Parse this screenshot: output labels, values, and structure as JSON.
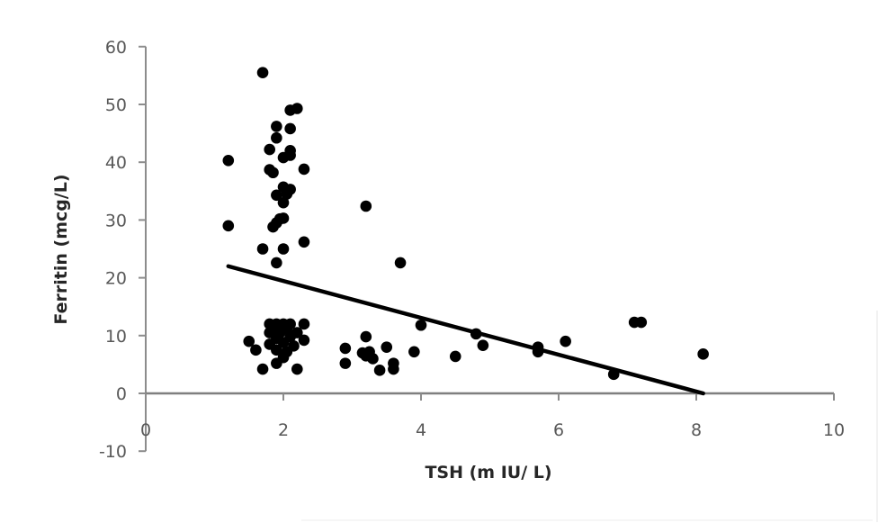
{
  "chart_data": {
    "type": "scatter",
    "title": "",
    "xlabel": "TSH (m IU/ L)",
    "ylabel": "Ferritin (mcg/L)",
    "xlim": [
      0,
      10
    ],
    "ylim": [
      -10,
      60
    ],
    "x_ticks": [
      0,
      2,
      4,
      6,
      8,
      10
    ],
    "y_ticks": [
      60,
      50,
      40,
      30,
      20,
      10,
      0,
      -10
    ],
    "grid": false,
    "legend": null,
    "marker_color": "#000000",
    "axis_color": "#8c8c8c",
    "trendline": {
      "type": "linear",
      "x": [
        1.2,
        8.1
      ],
      "y": [
        22.0,
        0.0
      ],
      "color": "#000000"
    },
    "points": [
      {
        "x": 1.2,
        "y": 40.3
      },
      {
        "x": 1.2,
        "y": 29.0
      },
      {
        "x": 1.7,
        "y": 55.5
      },
      {
        "x": 1.7,
        "y": 25.0
      },
      {
        "x": 1.8,
        "y": 42.2
      },
      {
        "x": 1.8,
        "y": 38.7
      },
      {
        "x": 1.85,
        "y": 38.2
      },
      {
        "x": 1.85,
        "y": 28.8
      },
      {
        "x": 1.9,
        "y": 46.2
      },
      {
        "x": 1.9,
        "y": 44.2
      },
      {
        "x": 1.9,
        "y": 34.3
      },
      {
        "x": 1.9,
        "y": 29.5
      },
      {
        "x": 1.9,
        "y": 22.6
      },
      {
        "x": 1.95,
        "y": 30.2
      },
      {
        "x": 2.0,
        "y": 40.8
      },
      {
        "x": 2.0,
        "y": 35.7
      },
      {
        "x": 2.0,
        "y": 33.0
      },
      {
        "x": 2.0,
        "y": 30.3
      },
      {
        "x": 2.0,
        "y": 25.0
      },
      {
        "x": 2.05,
        "y": 34.5
      },
      {
        "x": 2.1,
        "y": 45.8
      },
      {
        "x": 2.1,
        "y": 42.0
      },
      {
        "x": 2.1,
        "y": 41.2
      },
      {
        "x": 2.1,
        "y": 35.3
      },
      {
        "x": 2.1,
        "y": 49.0
      },
      {
        "x": 2.2,
        "y": 49.3
      },
      {
        "x": 2.3,
        "y": 38.8
      },
      {
        "x": 2.3,
        "y": 26.2
      },
      {
        "x": 1.5,
        "y": 9.0
      },
      {
        "x": 1.6,
        "y": 7.5
      },
      {
        "x": 1.7,
        "y": 4.2
      },
      {
        "x": 1.8,
        "y": 12.0
      },
      {
        "x": 1.8,
        "y": 10.5
      },
      {
        "x": 1.8,
        "y": 8.5
      },
      {
        "x": 1.85,
        "y": 11.0
      },
      {
        "x": 1.9,
        "y": 12.0
      },
      {
        "x": 1.9,
        "y": 9.5
      },
      {
        "x": 1.9,
        "y": 7.5
      },
      {
        "x": 1.9,
        "y": 5.2
      },
      {
        "x": 1.95,
        "y": 10.5
      },
      {
        "x": 2.0,
        "y": 12.0
      },
      {
        "x": 2.0,
        "y": 8.8
      },
      {
        "x": 2.0,
        "y": 6.2
      },
      {
        "x": 2.05,
        "y": 11.2
      },
      {
        "x": 2.05,
        "y": 7.2
      },
      {
        "x": 2.1,
        "y": 9.8
      },
      {
        "x": 2.1,
        "y": 12.0
      },
      {
        "x": 2.15,
        "y": 8.2
      },
      {
        "x": 2.2,
        "y": 10.5
      },
      {
        "x": 2.2,
        "y": 4.2
      },
      {
        "x": 2.3,
        "y": 12.0
      },
      {
        "x": 2.3,
        "y": 9.2
      },
      {
        "x": 2.9,
        "y": 7.8
      },
      {
        "x": 2.9,
        "y": 5.2
      },
      {
        "x": 3.15,
        "y": 7.0
      },
      {
        "x": 3.2,
        "y": 32.4
      },
      {
        "x": 3.2,
        "y": 9.8
      },
      {
        "x": 3.2,
        "y": 6.5
      },
      {
        "x": 3.25,
        "y": 7.2
      },
      {
        "x": 3.3,
        "y": 6.0
      },
      {
        "x": 3.4,
        "y": 4.0
      },
      {
        "x": 3.5,
        "y": 8.0
      },
      {
        "x": 3.6,
        "y": 5.2
      },
      {
        "x": 3.6,
        "y": 4.2
      },
      {
        "x": 3.7,
        "y": 22.6
      },
      {
        "x": 3.9,
        "y": 7.2
      },
      {
        "x": 4.0,
        "y": 11.8
      },
      {
        "x": 4.5,
        "y": 6.4
      },
      {
        "x": 4.8,
        "y": 10.3
      },
      {
        "x": 4.9,
        "y": 8.3
      },
      {
        "x": 5.7,
        "y": 8.0
      },
      {
        "x": 5.7,
        "y": 7.2
      },
      {
        "x": 6.1,
        "y": 9.0
      },
      {
        "x": 6.8,
        "y": 3.3
      },
      {
        "x": 7.1,
        "y": 12.3
      },
      {
        "x": 7.2,
        "y": 12.3
      },
      {
        "x": 8.1,
        "y": 6.8
      }
    ]
  }
}
